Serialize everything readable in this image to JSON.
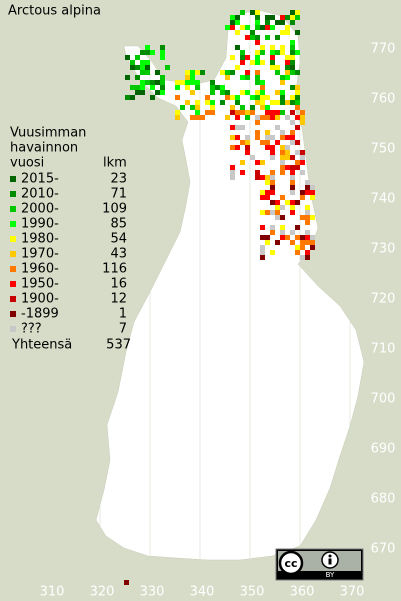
{
  "title": "Arctous alpina",
  "legend": {
    "heading": [
      "Vuusimman",
      "havainnon",
      "vuosi"
    ],
    "count_header": "lkm",
    "rows": [
      {
        "label": "2015-",
        "count": 23,
        "color": "#006400"
      },
      {
        "label": "2010-",
        "count": 71,
        "color": "#008c00"
      },
      {
        "label": "2000-",
        "count": 109,
        "color": "#00c800"
      },
      {
        "label": "1990-",
        "count": 85,
        "color": "#00ff00"
      },
      {
        "label": "1980-",
        "count": 54,
        "color": "#ffff00"
      },
      {
        "label": "1970-",
        "count": 43,
        "color": "#ffc800"
      },
      {
        "label": "1960-",
        "count": 116,
        "color": "#ff7800"
      },
      {
        "label": "1950-",
        "count": 16,
        "color": "#ff0000"
      },
      {
        "label": "1900-",
        "count": 12,
        "color": "#c80000"
      },
      {
        "label": "-1899",
        "count": 1,
        "color": "#800000"
      },
      {
        "label": "???",
        "count": 7,
        "color": "#c8c8c8"
      }
    ],
    "total_label": "Yhteensä",
    "total": 537
  },
  "y_labels": [
    770,
    760,
    750,
    740,
    730,
    720,
    710,
    700,
    690,
    680,
    670
  ],
  "x_labels": [
    310,
    320,
    330,
    340,
    350,
    360,
    370
  ],
  "license": {
    "cc": "cc",
    "by": "BY"
  }
}
